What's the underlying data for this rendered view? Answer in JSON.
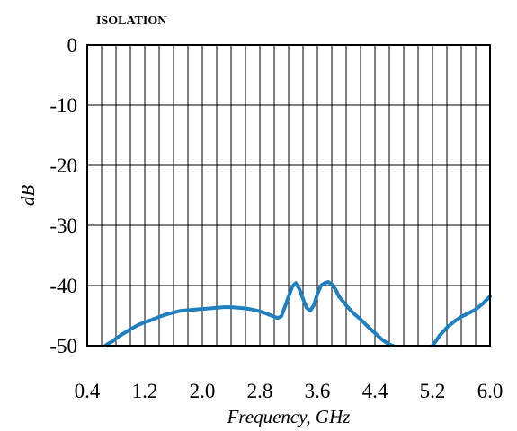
{
  "chart_data": {
    "type": "line",
    "title": "ISOLATION",
    "xlabel": "Frequency, GHz",
    "ylabel": "dB",
    "xlim": [
      0.4,
      6.0
    ],
    "ylim": [
      -50,
      0
    ],
    "x_ticks": [
      0.4,
      1.2,
      2.0,
      2.8,
      3.6,
      4.4,
      5.2,
      6.0
    ],
    "x_tick_labels": [
      "0.4",
      "1.2",
      "2.0",
      "2.8",
      "3.6",
      "4.4",
      "5.2",
      "6.0"
    ],
    "x_minor_step": 0.2,
    "y_ticks": [
      0,
      -10,
      -20,
      -30,
      -40,
      -50
    ],
    "y_tick_labels": [
      "0",
      "-10",
      "-20",
      "-30",
      "-40",
      "-50"
    ],
    "grid": true,
    "line_color": "#1f7fbf",
    "series": [
      {
        "x": [
          0.65,
          0.7,
          0.75,
          0.8,
          0.9,
          1.0,
          1.1,
          1.2,
          1.3,
          1.4,
          1.5,
          1.6,
          1.7,
          1.8,
          1.9,
          2.0,
          2.1,
          2.2,
          2.3,
          2.4,
          2.5,
          2.6,
          2.7,
          2.8,
          2.9,
          3.0,
          3.05,
          3.1,
          3.15,
          3.2,
          3.25,
          3.3,
          3.35,
          3.4,
          3.45,
          3.5,
          3.55,
          3.6,
          3.65,
          3.7,
          3.75,
          3.8,
          3.85,
          3.9,
          4.0,
          4.1,
          4.2,
          4.3,
          4.4,
          4.5,
          4.6,
          4.65
        ],
        "y": [
          -50.0,
          -49.6,
          -49.3,
          -48.8,
          -48.0,
          -47.3,
          -46.6,
          -46.1,
          -45.7,
          -45.2,
          -44.8,
          -44.5,
          -44.2,
          -44.1,
          -44.0,
          -43.9,
          -43.8,
          -43.7,
          -43.6,
          -43.6,
          -43.7,
          -43.8,
          -44.0,
          -44.3,
          -44.7,
          -45.2,
          -45.4,
          -45.1,
          -43.5,
          -41.8,
          -40.2,
          -39.6,
          -40.6,
          -42.2,
          -43.7,
          -44.2,
          -43.3,
          -41.4,
          -40.0,
          -39.6,
          -39.4,
          -39.8,
          -40.6,
          -41.8,
          -43.3,
          -44.6,
          -45.6,
          -46.8,
          -47.9,
          -49.0,
          -49.8,
          -50.0
        ]
      },
      {
        "x": [
          5.2,
          5.25,
          5.3,
          5.4,
          5.5,
          5.6,
          5.7,
          5.8,
          5.9,
          6.0
        ],
        "y": [
          -50.0,
          -49.2,
          -48.3,
          -47.0,
          -46.0,
          -45.2,
          -44.6,
          -44.0,
          -43.0,
          -41.8
        ]
      }
    ]
  }
}
